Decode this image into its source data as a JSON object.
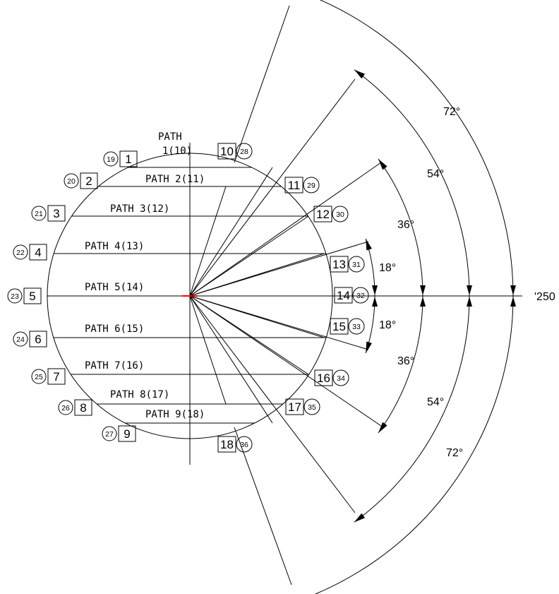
{
  "paths": [
    {
      "id": 1,
      "label": "PATH",
      "label2": "1(10)",
      "left_box": "1",
      "left_circle": "19",
      "right_box": "10",
      "right_circle": "28"
    },
    {
      "id": 2,
      "label": "PATH 2(11)",
      "left_box": "2",
      "left_circle": "20",
      "right_box": "11",
      "right_circle": "29"
    },
    {
      "id": 3,
      "label": "PATH 3(12)",
      "left_box": "3",
      "left_circle": "21",
      "right_box": "12",
      "right_circle": "30"
    },
    {
      "id": 4,
      "label": "PATH 4(13)",
      "left_box": "4",
      "left_circle": "22",
      "right_box": "13",
      "right_circle": "31"
    },
    {
      "id": 5,
      "label": "PATH 5(14)",
      "left_box": "5",
      "left_circle": "23",
      "right_box": "14",
      "right_circle": "32"
    },
    {
      "id": 6,
      "label": "PATH 6(15)",
      "left_box": "6",
      "left_circle": "24",
      "right_box": "15",
      "right_circle": "33"
    },
    {
      "id": 7,
      "label": "PATH 7(16)",
      "left_box": "7",
      "left_circle": "25",
      "right_box": "16",
      "right_circle": "34"
    },
    {
      "id": 8,
      "label": "PATH 8(17)",
      "left_box": "8",
      "left_circle": "26",
      "right_box": "17",
      "right_circle": "35"
    },
    {
      "id": 9,
      "label": "PATH 9(18)",
      "left_box": "9",
      "left_circle": "27",
      "right_box": "18",
      "right_circle": "36"
    }
  ],
  "angles": {
    "upper": [
      "18°",
      "36°",
      "54°",
      "72°"
    ],
    "lower": [
      "18°",
      "36°",
      "54°",
      "72°"
    ]
  },
  "reference_label": "'250",
  "colors": {
    "center_mark": "#ff0000",
    "ink": "#000000"
  }
}
